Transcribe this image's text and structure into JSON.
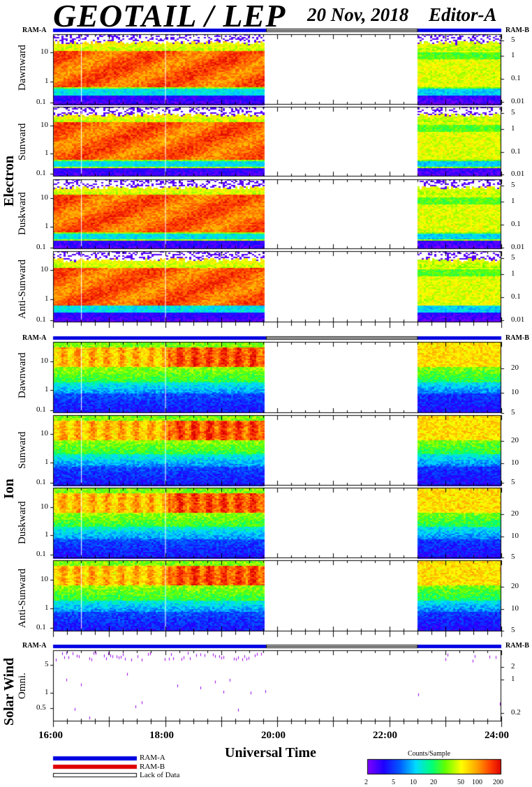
{
  "header": {
    "title": "GEOTAIL / LEP",
    "date": "20 Nov, 2018",
    "editor": "Editor-A"
  },
  "xaxis": {
    "label": "Universal Time",
    "ticks": [
      "16:00",
      "18:00",
      "20:00",
      "22:00",
      "24:00"
    ]
  },
  "ram": {
    "a": "RAM-A",
    "b": "RAM-B"
  },
  "groups": {
    "electron": "Electron",
    "ion": "Ion",
    "solar_wind": "Solar Wind"
  },
  "panels": [
    {
      "name": "Dawnward",
      "left_ticks": [
        "10",
        "1",
        "0.1"
      ],
      "right_ticks": [
        "5",
        "1",
        "0.1",
        "0.01"
      ]
    },
    {
      "name": "Sunward",
      "left_ticks": [
        "10",
        "1",
        "0.1"
      ],
      "right_ticks": [
        "5",
        "1",
        "0.1",
        "0.01"
      ]
    },
    {
      "name": "Duskward",
      "left_ticks": [
        "10",
        "1",
        "0.1"
      ],
      "right_ticks": [
        "5",
        "1",
        "0.1",
        "0.01"
      ]
    },
    {
      "name": "Anti-Sunward",
      "left_ticks": [
        "10",
        "1",
        "0.1"
      ],
      "right_ticks": [
        "5",
        "1",
        "0.1",
        "0.01"
      ]
    },
    {
      "name": "Dawnward",
      "left_ticks": [
        "10",
        "1",
        "0.1"
      ],
      "right_ticks": [
        "20",
        "10",
        "5"
      ]
    },
    {
      "name": "Sunward",
      "left_ticks": [
        "10",
        "1",
        "0.1"
      ],
      "right_ticks": [
        "20",
        "10",
        "5"
      ]
    },
    {
      "name": "Duskward",
      "left_ticks": [
        "10",
        "1",
        "0.1"
      ],
      "right_ticks": [
        "20",
        "10",
        "5"
      ]
    },
    {
      "name": "Anti-Sunward",
      "left_ticks": [
        "10",
        "1",
        "0.1"
      ],
      "right_ticks": [
        "20",
        "10",
        "5"
      ]
    },
    {
      "name": "Omni.",
      "left_ticks": [
        "5",
        "1",
        "0.5"
      ],
      "right_ticks": [
        "2",
        "1",
        "0.2"
      ]
    }
  ],
  "legend": {
    "ram_a": "RAM-A",
    "ram_b": "RAM-B",
    "lack": "Lack of Data"
  },
  "colorbar": {
    "title": "Counts/Sample",
    "ticks": [
      "2",
      "5",
      "10",
      "20",
      "50",
      "100",
      "200"
    ]
  },
  "chart_data": {
    "type": "heatmap",
    "x_range_hours": [
      16,
      24
    ],
    "data_gap_hours": [
      19.8,
      22.5
    ],
    "colorbar_range": [
      2,
      200
    ],
    "colorbar_scale": "log",
    "data_mode_coverage": [
      {
        "mode": "RAM-A",
        "start": 16.0,
        "end": 19.8
      },
      {
        "mode": "Lack of Data",
        "start": 19.8,
        "end": 22.5
      },
      {
        "mode": "RAM-A",
        "start": 22.5,
        "end": 24.0
      }
    ],
    "colors": {
      "ram_a": "#0000ff",
      "ram_b": "#ff0000",
      "lack": "#ffffff"
    }
  }
}
